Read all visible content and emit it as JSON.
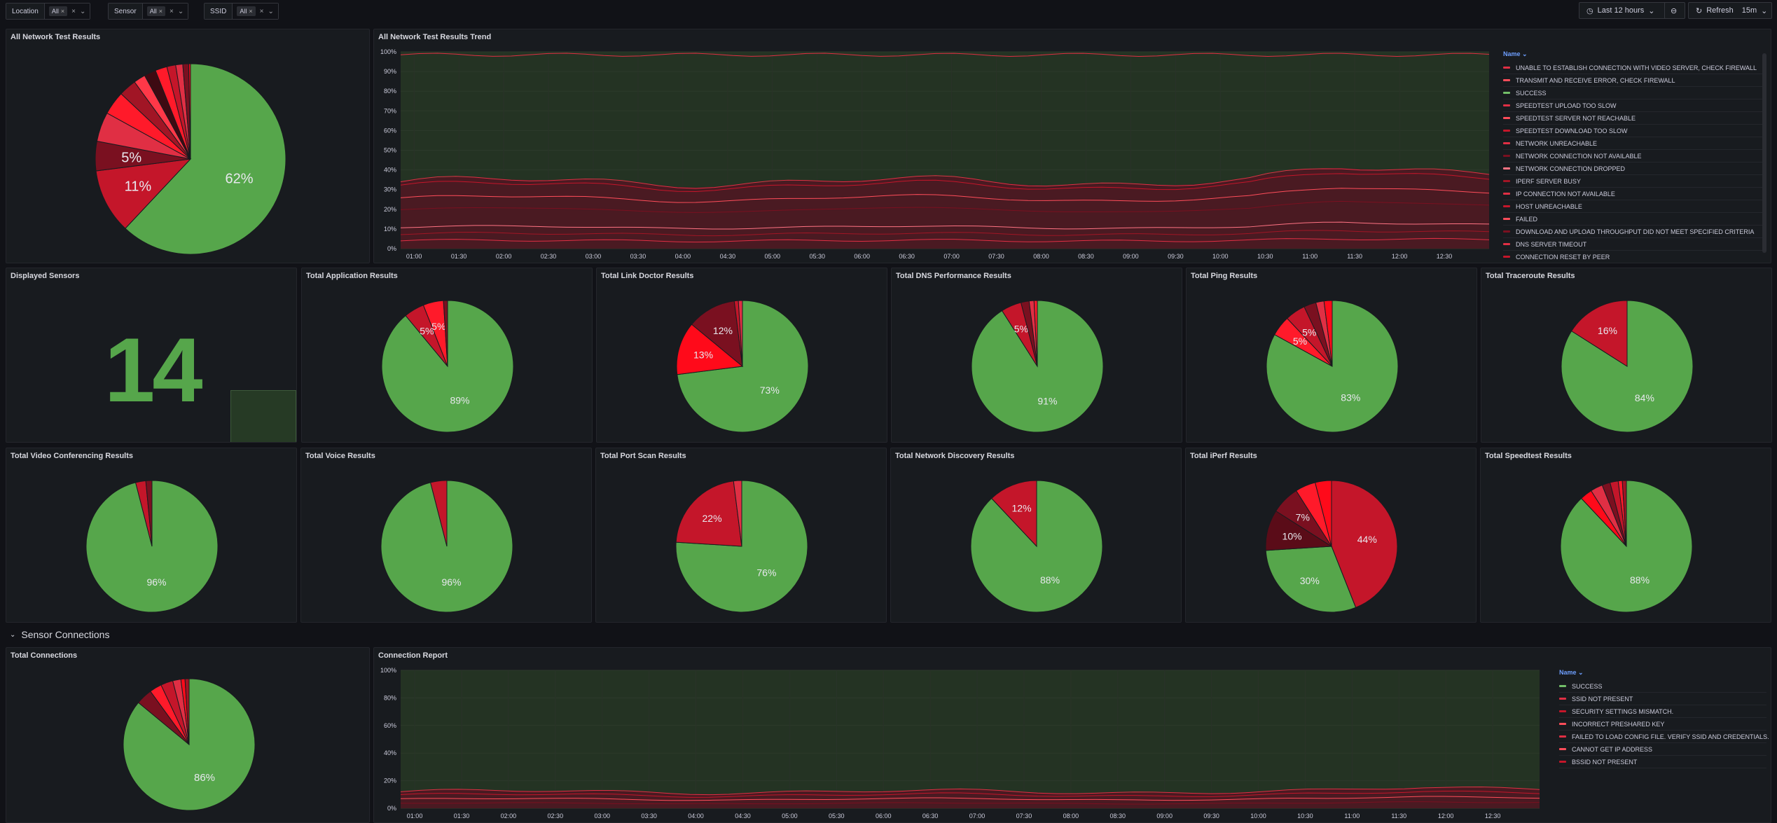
{
  "filters": [
    {
      "label": "Location",
      "value": "All"
    },
    {
      "label": "Sensor",
      "value": "All"
    },
    {
      "label": "SSID",
      "value": "All"
    }
  ],
  "time_range": "Last 12 hours",
  "refresh": {
    "label": "Refresh",
    "interval": "15m"
  },
  "colors": {
    "green": "#56a64b",
    "dark_red": "#c4162a",
    "red": "#ff0a1a",
    "maroon": "#7a1020",
    "bg": "#181b1f"
  },
  "panels": {
    "all_results": {
      "title": "All Network Test Results",
      "slices": [
        {
          "value": 62,
          "label": "62%",
          "color": "#56a64b"
        },
        {
          "value": 11,
          "label": "11%",
          "color": "#c4162a"
        },
        {
          "value": 5,
          "label": "5%",
          "color": "#7a1020"
        },
        {
          "value": 5,
          "label": "",
          "color": "#e02f44"
        },
        {
          "value": 4,
          "label": "",
          "color": "#ff1a2a"
        },
        {
          "value": 3,
          "label": "",
          "color": "#a11525"
        },
        {
          "value": 2,
          "label": "",
          "color": "#ff3848"
        },
        {
          "value": 2,
          "label": "",
          "color": "#3d0a12"
        },
        {
          "value": 2,
          "label": "",
          "color": "#ff1a2a"
        },
        {
          "value": 1.5,
          "label": "",
          "color": "#c4162a"
        },
        {
          "value": 1.2,
          "label": "",
          "color": "#e02f44"
        },
        {
          "value": 1,
          "label": "",
          "color": "#7a1020"
        },
        {
          "value": 0.3,
          "label": "",
          "color": "#ff0a1a"
        }
      ]
    },
    "trend": {
      "title": "All Network Test Results Trend",
      "legend_header": "Name",
      "legend": [
        {
          "name": "UNABLE TO ESTABLISH CONNECTION WITH VIDEO SERVER, CHECK FIREWALL",
          "color": "#e02f44"
        },
        {
          "name": "TRANSMIT AND RECEIVE ERROR, CHECK FIREWALL",
          "color": "#ff4d5a"
        },
        {
          "name": "SUCCESS",
          "color": "#73bf69"
        },
        {
          "name": "SPEEDTEST UPLOAD TOO SLOW",
          "color": "#e02f44"
        },
        {
          "name": "SPEEDTEST SERVER NOT REACHABLE",
          "color": "#ff4d5a"
        },
        {
          "name": "SPEEDTEST DOWNLOAD TOO SLOW",
          "color": "#c4162a"
        },
        {
          "name": "NETWORK UNREACHABLE",
          "color": "#e02f44"
        },
        {
          "name": "NETWORK CONNECTION NOT AVAILABLE",
          "color": "#7a1020"
        },
        {
          "name": "NETWORK CONNECTION DROPPED",
          "color": "#ff7383"
        },
        {
          "name": "IPERF SERVER BUSY",
          "color": "#a11525"
        },
        {
          "name": "IP CONNECTION NOT AVAILABLE",
          "color": "#e02f44"
        },
        {
          "name": "HOST UNREACHABLE",
          "color": "#c4162a"
        },
        {
          "name": "FAILED",
          "color": "#ff4d5a"
        },
        {
          "name": "DOWNLOAD AND UPLOAD THROUGHPUT DID NOT MEET SPECIFIED CRITERIA",
          "color": "#7a1020"
        },
        {
          "name": "DNS SERVER TIMEOUT",
          "color": "#e02f44"
        },
        {
          "name": "CONNECTION RESET BY PEER",
          "color": "#c4162a"
        }
      ],
      "y_ticks": [
        "100%",
        "90%",
        "80%",
        "70%",
        "60%",
        "50%",
        "40%",
        "30%",
        "20%",
        "10%",
        "0%"
      ],
      "x_ticks": [
        "01:00",
        "01:30",
        "02:00",
        "02:30",
        "03:00",
        "03:30",
        "04:00",
        "04:30",
        "05:00",
        "05:30",
        "06:00",
        "06:30",
        "07:00",
        "07:30",
        "08:00",
        "08:30",
        "09:00",
        "09:30",
        "10:00",
        "10:30",
        "11:00",
        "11:30",
        "12:00",
        "12:30"
      ]
    },
    "displayed_sensors": {
      "title": "Displayed Sensors",
      "value": "14"
    },
    "small": [
      {
        "title": "Total Application Results",
        "slices": [
          {
            "value": 89,
            "label": "89%",
            "color": "#56a64b"
          },
          {
            "value": 5,
            "label": "5%",
            "color": "#c4162a"
          },
          {
            "value": 5,
            "label": "5%",
            "color": "#ff1a2a"
          },
          {
            "value": 1,
            "label": "",
            "color": "#7a1020"
          }
        ]
      },
      {
        "title": "Total Link Doctor Results",
        "slices": [
          {
            "value": 73,
            "label": "73%",
            "color": "#56a64b"
          },
          {
            "value": 13,
            "label": "13%",
            "color": "#ff0a1a"
          },
          {
            "value": 12,
            "label": "12%",
            "color": "#7a1020"
          },
          {
            "value": 1,
            "label": "",
            "color": "#c4162a"
          },
          {
            "value": 1,
            "label": "",
            "color": "#e02f44"
          }
        ]
      },
      {
        "title": "Total DNS Performance Results",
        "slices": [
          {
            "value": 91,
            "label": "91%",
            "color": "#56a64b"
          },
          {
            "value": 5,
            "label": "5%",
            "color": "#c4162a"
          },
          {
            "value": 2,
            "label": "",
            "color": "#7a1020"
          },
          {
            "value": 1.2,
            "label": "",
            "color": "#e02f44"
          },
          {
            "value": 0.8,
            "label": "",
            "color": "#ff1a2a"
          }
        ]
      },
      {
        "title": "Total Ping Results",
        "slices": [
          {
            "value": 83,
            "label": "83%",
            "color": "#56a64b"
          },
          {
            "value": 5,
            "label": "5%",
            "color": "#ff1a2a"
          },
          {
            "value": 5,
            "label": "5%",
            "color": "#c4162a"
          },
          {
            "value": 3,
            "label": "",
            "color": "#7a1020"
          },
          {
            "value": 2,
            "label": "",
            "color": "#e02f44"
          },
          {
            "value": 2,
            "label": "",
            "color": "#ff0a1a"
          }
        ]
      },
      {
        "title": "Total Traceroute Results",
        "slices": [
          {
            "value": 84,
            "label": "84%",
            "color": "#56a64b"
          },
          {
            "value": 16,
            "label": "16%",
            "color": "#c4162a"
          }
        ]
      },
      {
        "title": "Total Video Conferencing Results",
        "slices": [
          {
            "value": 96,
            "label": "96%",
            "color": "#56a64b"
          },
          {
            "value": 2.5,
            "label": "",
            "color": "#c4162a"
          },
          {
            "value": 1.5,
            "label": "",
            "color": "#7a1020"
          }
        ]
      },
      {
        "title": "Total Voice Results",
        "slices": [
          {
            "value": 96,
            "label": "96%",
            "color": "#56a64b"
          },
          {
            "value": 4,
            "label": "",
            "color": "#c4162a"
          }
        ]
      },
      {
        "title": "Total Port Scan Results",
        "slices": [
          {
            "value": 76,
            "label": "76%",
            "color": "#56a64b"
          },
          {
            "value": 22,
            "label": "22%",
            "color": "#c4162a"
          },
          {
            "value": 2,
            "label": "",
            "color": "#e02f44"
          }
        ]
      },
      {
        "title": "Total Network Discovery Results",
        "slices": [
          {
            "value": 88,
            "label": "88%",
            "color": "#56a64b"
          },
          {
            "value": 12,
            "label": "12%",
            "color": "#c4162a"
          }
        ]
      },
      {
        "title": "Total iPerf Results",
        "slices": [
          {
            "value": 44,
            "label": "44%",
            "color": "#c4162a"
          },
          {
            "value": 30,
            "label": "30%",
            "color": "#56a64b"
          },
          {
            "value": 10,
            "label": "10%",
            "color": "#5a0c18"
          },
          {
            "value": 7,
            "label": "7%",
            "color": "#7a1020"
          },
          {
            "value": 5,
            "label": "",
            "color": "#ff1a2a"
          },
          {
            "value": 4,
            "label": "",
            "color": "#ff0a1a"
          }
        ]
      },
      {
        "title": "Total Speedtest Results",
        "slices": [
          {
            "value": 88,
            "label": "88%",
            "color": "#56a64b"
          },
          {
            "value": 3,
            "label": "",
            "color": "#ff0a1a"
          },
          {
            "value": 3,
            "label": "",
            "color": "#e02f44"
          },
          {
            "value": 2,
            "label": "",
            "color": "#7a1020"
          },
          {
            "value": 2,
            "label": "",
            "color": "#c4162a"
          },
          {
            "value": 1,
            "label": "",
            "color": "#ff1a2a"
          },
          {
            "value": 1,
            "label": "",
            "color": "#a11525"
          }
        ]
      }
    ],
    "section": "Sensor Connections",
    "total_connections": {
      "title": "Total Connections",
      "slices": [
        {
          "value": 86,
          "label": "86%",
          "color": "#56a64b"
        },
        {
          "value": 4,
          "label": "",
          "color": "#7a1020"
        },
        {
          "value": 3,
          "label": "",
          "color": "#ff1a2a"
        },
        {
          "value": 3,
          "label": "",
          "color": "#c4162a"
        },
        {
          "value": 2,
          "label": "",
          "color": "#e02f44"
        },
        {
          "value": 1,
          "label": "",
          "color": "#ff0a1a"
        },
        {
          "value": 1,
          "label": "",
          "color": "#a11525"
        }
      ]
    },
    "connection_report": {
      "title": "Connection Report",
      "legend_header": "Name",
      "legend": [
        {
          "name": "SUCCESS",
          "color": "#73bf69"
        },
        {
          "name": "SSID NOT PRESENT",
          "color": "#e02f44"
        },
        {
          "name": "SECURITY SETTINGS MISMATCH.",
          "color": "#c4162a"
        },
        {
          "name": "INCORRECT PRESHARED KEY",
          "color": "#ff4d5a"
        },
        {
          "name": "FAILED TO LOAD CONFIG FILE. VERIFY SSID AND CREDENTIALS.",
          "color": "#e02f44"
        },
        {
          "name": "CANNOT GET IP ADDRESS",
          "color": "#ff4d5a"
        },
        {
          "name": "BSSID NOT PRESENT",
          "color": "#c4162a"
        }
      ],
      "y_ticks": [
        "100%",
        "80%",
        "60%",
        "40%",
        "20%",
        "0%"
      ],
      "x_ticks": [
        "01:00",
        "01:30",
        "02:00",
        "02:30",
        "03:00",
        "03:30",
        "04:00",
        "04:30",
        "05:00",
        "05:30",
        "06:00",
        "06:30",
        "07:00",
        "07:30",
        "08:00",
        "08:30",
        "09:00",
        "09:30",
        "10:00",
        "10:30",
        "11:00",
        "11:30",
        "12:00",
        "12:30"
      ]
    }
  }
}
